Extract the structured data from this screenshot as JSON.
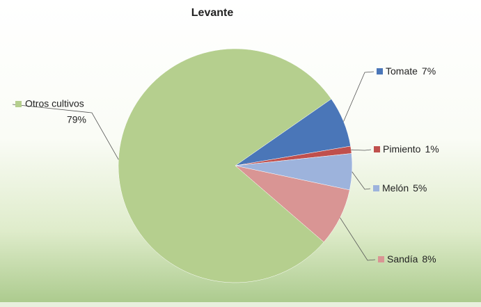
{
  "chart_data": {
    "type": "pie",
    "title": "Levante",
    "categories": [
      "Tomate",
      "Pimiento",
      "Melón",
      "Sandía",
      "Otros cultivos"
    ],
    "values": [
      7,
      1,
      5,
      8,
      79
    ],
    "value_labels": [
      "7%",
      "1%",
      "5%",
      "8%",
      "79%"
    ],
    "colors": [
      "#4a76b8",
      "#c0504d",
      "#9db3dc",
      "#d99594",
      "#b5cf8e"
    ]
  }
}
